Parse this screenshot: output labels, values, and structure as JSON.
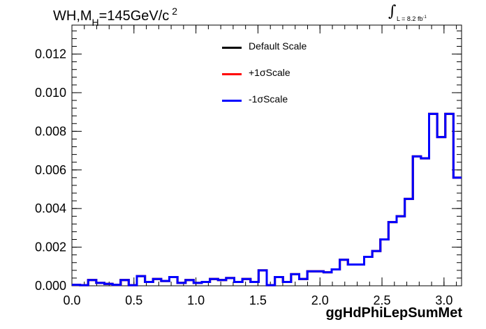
{
  "title": {
    "main": "WH,M",
    "sub": "H",
    "rest": "=145GeV/c",
    "sup": "2"
  },
  "lumi": {
    "integral": "∫",
    "text": "L = 8.2 fb",
    "sup": "-1"
  },
  "chart_data": {
    "type": "line",
    "xlabel": "ggHdPhiLepSumMet",
    "ylabel": "",
    "xlim": [
      0,
      3.1416
    ],
    "ylim": [
      0,
      0.0135
    ],
    "x_ticks": [
      "0.0",
      "0.5",
      "1.0",
      "1.5",
      "2.0",
      "2.5",
      "3.0"
    ],
    "x_tick_values": [
      0,
      0.5,
      1.0,
      1.5,
      2.0,
      2.5,
      3.0
    ],
    "y_ticks": [
      "0.000",
      "0.002",
      "0.004",
      "0.006",
      "0.008",
      "0.010",
      "0.012"
    ],
    "y_tick_values": [
      0,
      0.002,
      0.004,
      0.006,
      0.008,
      0.01,
      0.012
    ],
    "bin_edges_start": 0,
    "bin_width": 0.06545,
    "series": [
      {
        "name": "Default Scale",
        "color": "#000000",
        "values": [
          5e-05,
          3e-05,
          0.0003,
          0.00015,
          0.0001,
          5e-05,
          0.0003,
          3e-05,
          0.0005,
          0.0002,
          0.00035,
          0.00025,
          0.00045,
          0.00015,
          0.0003,
          0.00015,
          0.0002,
          0.00035,
          0.0003,
          0.0004,
          0.0002,
          0.00035,
          0.0002,
          0.0008,
          3e-05,
          0.00045,
          0.0002,
          0.0006,
          0.00035,
          0.00075,
          0.00075,
          0.0007,
          0.00085,
          0.00135,
          0.0011,
          0.0011,
          0.0015,
          0.0018,
          0.0024,
          0.0033,
          0.0036,
          0.0045,
          0.0067,
          0.0066,
          0.0089,
          0.0077,
          0.0089,
          0.0056
        ]
      },
      {
        "name": "+1σScale",
        "color": "#ff0000",
        "values": [
          5e-05,
          3e-05,
          0.0003,
          0.00015,
          0.0001,
          5e-05,
          0.0003,
          3e-05,
          0.0005,
          0.0002,
          0.00035,
          0.00025,
          0.00045,
          0.00015,
          0.0003,
          0.00015,
          0.0002,
          0.00035,
          0.0003,
          0.0004,
          0.0002,
          0.00035,
          0.0002,
          0.0008,
          3e-05,
          0.00045,
          0.0002,
          0.0006,
          0.00035,
          0.00075,
          0.00075,
          0.0007,
          0.00085,
          0.00135,
          0.0011,
          0.0011,
          0.0015,
          0.0018,
          0.0024,
          0.0033,
          0.0036,
          0.0045,
          0.0067,
          0.0066,
          0.0089,
          0.0077,
          0.0089,
          0.0056
        ]
      },
      {
        "name": "-1σScale",
        "color": "#0000ff",
        "values": [
          5e-05,
          3e-05,
          0.0003,
          0.00015,
          0.0001,
          5e-05,
          0.0003,
          3e-05,
          0.0005,
          0.0002,
          0.00035,
          0.00025,
          0.00045,
          0.00015,
          0.0003,
          0.00015,
          0.0002,
          0.00035,
          0.0003,
          0.0004,
          0.0002,
          0.00035,
          0.0002,
          0.0008,
          3e-05,
          0.00045,
          0.0002,
          0.0006,
          0.00035,
          0.00075,
          0.00075,
          0.0007,
          0.00085,
          0.00135,
          0.0011,
          0.0011,
          0.0015,
          0.0018,
          0.0024,
          0.0033,
          0.0036,
          0.0045,
          0.0067,
          0.0066,
          0.0089,
          0.0077,
          0.0089,
          0.0056
        ]
      }
    ],
    "legend_position": "top-center",
    "grid": false
  }
}
